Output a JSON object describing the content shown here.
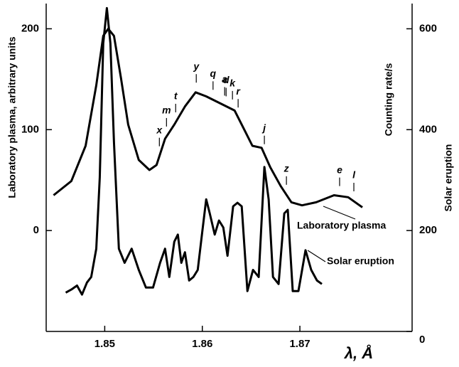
{
  "chart_data": {
    "type": "line",
    "xlabel": "λ, Å",
    "ylabel": "Laboratory plasma, arbitrary units",
    "y2labels": [
      "Counting rate/s",
      "Solar eruption"
    ],
    "xlim": [
      1.844,
      1.8815
    ],
    "ylim": [
      -100,
      225
    ],
    "y2lim": [
      0,
      650
    ],
    "xticks": [
      1.85,
      1.86,
      1.87
    ],
    "yticks": [
      0,
      100,
      200
    ],
    "y2ticks": [
      0,
      200,
      400,
      600
    ],
    "series": [
      {
        "name": "Laboratory plasma",
        "color": "#000000",
        "x": [
          1.84476,
          1.84658,
          1.84804,
          1.84913,
          1.84985,
          1.85036,
          1.85095,
          1.85167,
          1.8524,
          1.85349,
          1.85458,
          1.85531,
          1.85618,
          1.85713,
          1.85822,
          1.85931,
          1.8604,
          1.86185,
          1.86331,
          1.8644,
          1.86513,
          1.86607,
          1.86695,
          1.86804,
          1.86913,
          1.87022,
          1.87167,
          1.8735,
          1.87495,
          1.8764
        ],
        "values": [
          35,
          49,
          84,
          144,
          193,
          200,
          193,
          151,
          105,
          70,
          60,
          65,
          91,
          105,
          123,
          137,
          133,
          126,
          119,
          98,
          84,
          82,
          63,
          44,
          28,
          25,
          28,
          35,
          33,
          23
        ]
      },
      {
        "name": "Solar eruption",
        "color": "#000000",
        "axis": "y2",
        "x": [
          1.846,
          1.84658,
          1.84716,
          1.84767,
          1.84818,
          1.84862,
          1.84913,
          1.84949,
          1.84985,
          1.85022,
          1.85058,
          1.85095,
          1.85145,
          1.85204,
          1.85276,
          1.85349,
          1.85422,
          1.85495,
          1.85567,
          1.85618,
          1.85662,
          1.85713,
          1.85749,
          1.85785,
          1.85822,
          1.85865,
          1.85909,
          1.85953,
          1.85996,
          1.8604,
          1.86076,
          1.86127,
          1.86171,
          1.86215,
          1.86258,
          1.86316,
          1.8636,
          1.86404,
          1.86462,
          1.8652,
          1.86578,
          1.86636,
          1.8668,
          1.86724,
          1.86782,
          1.8684,
          1.86876,
          1.86927,
          1.86985,
          1.87058,
          1.87116,
          1.87175,
          1.87225
        ],
        "values": [
          77,
          83,
          91,
          73,
          97,
          108,
          164,
          305,
          571,
          641,
          571,
          375,
          164,
          136,
          164,
          122,
          87,
          87,
          136,
          164,
          108,
          178,
          192,
          136,
          157,
          101,
          108,
          122,
          192,
          262,
          234,
          192,
          220,
          206,
          150,
          248,
          255,
          248,
          80,
          122,
          108,
          326,
          262,
          108,
          94,
          234,
          241,
          80,
          80,
          161,
          122,
          101,
          94
        ]
      }
    ],
    "line_labels": [
      {
        "label": "x",
        "x": 1.8556
      },
      {
        "label": "m",
        "x": 1.85633
      },
      {
        "label": "t",
        "x": 1.85727
      },
      {
        "label": "y",
        "x": 1.85938
      },
      {
        "label": "q",
        "x": 1.8611
      },
      {
        "label": "a",
        "x": 1.86229
      },
      {
        "label": "d",
        "x": 1.86244
      },
      {
        "label": "k",
        "x": 1.86309
      },
      {
        "label": "r",
        "x": 1.86367
      },
      {
        "label": "j",
        "x": 1.86636
      },
      {
        "label": "z",
        "x": 1.86862
      },
      {
        "label": "e",
        "x": 1.87407
      },
      {
        "label": "l",
        "x": 1.87553
      }
    ]
  }
}
